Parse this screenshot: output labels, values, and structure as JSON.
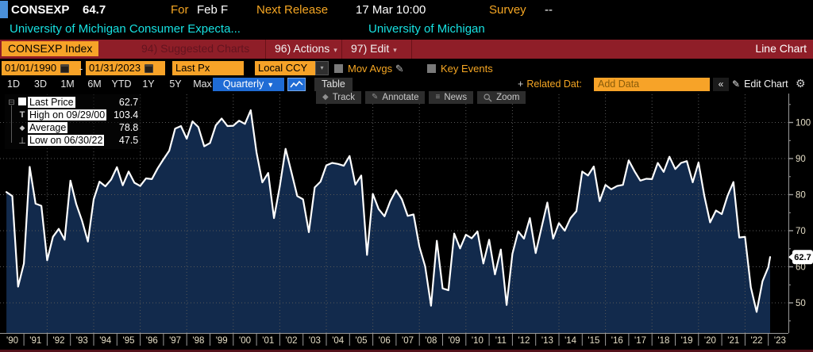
{
  "header": {
    "ticker": "CONSEXP",
    "last_value": "64.7",
    "for_label": "For",
    "for_value": "Feb F",
    "next_release_label": "Next Release",
    "next_release_value": "17 Mar 10:00",
    "survey_label": "Survey",
    "survey_value": "--",
    "description": "University of Michigan Consumer Expecta...",
    "source": "University of Michigan"
  },
  "menubar": {
    "security": "CONSEXP Index",
    "suggested_charts": "94) Suggested Charts",
    "actions": "96) Actions",
    "edit": "97) Edit",
    "view_name": "Line Chart"
  },
  "toolbar": {
    "date_from": "01/01/1990",
    "date_separator": "-",
    "date_to": "01/31/2023",
    "price_field": "Last Px",
    "currency": "Local CCY",
    "mov_avgs_label": "Mov Avgs",
    "key_events_label": "Key Events"
  },
  "period_bar": {
    "ranges": [
      "1D",
      "3D",
      "1M",
      "6M",
      "YTD",
      "1Y",
      "5Y",
      "Max"
    ],
    "frequency": "Quarterly",
    "table_label": "Table",
    "related_data_label": "Related Dat:",
    "add_data_placeholder": "Add Data",
    "collapse_label": "«",
    "edit_chart_label": "Edit Chart"
  },
  "chart_tools": [
    {
      "label": "Track",
      "icon": "track-icon"
    },
    {
      "label": "Annotate",
      "icon": "annotate-icon"
    },
    {
      "label": "News",
      "icon": "news-icon"
    },
    {
      "label": "Zoom",
      "icon": "zoom-icon"
    }
  ],
  "legend": {
    "items": [
      {
        "label": "Last Price",
        "value": "62.7",
        "marker": "square"
      },
      {
        "label": "High on 09/29/00",
        "value": "103.4",
        "marker": "high"
      },
      {
        "label": "Average",
        "value": "78.8",
        "marker": "average"
      },
      {
        "label": "Low on 06/30/22",
        "value": "47.5",
        "marker": "low"
      }
    ]
  },
  "chart_data": {
    "type": "area",
    "title": "CONSEXP Index - University of Michigan Consumer Expectations",
    "frequency": "Quarterly",
    "last_price": 62.7,
    "high": {
      "date": "09/29/00",
      "value": 103.4
    },
    "average": 78.8,
    "low": {
      "date": "06/30/22",
      "value": 47.5
    },
    "ylim": [
      41.5,
      109.0
    ],
    "xlim": [
      1990.0,
      2023.9
    ],
    "y_ticks": [
      50,
      60,
      70,
      80,
      90,
      100
    ],
    "y_minor_ticks": [
      45,
      55,
      65,
      75,
      85,
      95,
      105
    ],
    "grid_years": [
      1992,
      1994,
      1996,
      1998,
      2000,
      2002,
      2004,
      2006,
      2008,
      2010,
      2012,
      2014,
      2016,
      2018,
      2020,
      2022
    ],
    "x_tick_labels": [
      "'90",
      "'91",
      "'92",
      "'93",
      "'94",
      "'95",
      "'96",
      "'97",
      "'98",
      "'99",
      "'00",
      "'01",
      "'02",
      "'03",
      "'04",
      "'05",
      "'06",
      "'07",
      "'08",
      "'09",
      "'10",
      "'11",
      "'12",
      "'13",
      "'14",
      "'15",
      "'16",
      "'17",
      "'18",
      "'19",
      "'20",
      "'21",
      "'22",
      "'23"
    ],
    "line_color": "#ffffff",
    "fill_color": "#122a4c",
    "grid_color": "#585858",
    "axis_color": "#9a9a9a",
    "axis_label_color": "#e4ddc6",
    "points": [
      [
        1990.25,
        80.7
      ],
      [
        1990.5,
        79.6
      ],
      [
        1990.75,
        54.5
      ],
      [
        1991,
        60.9
      ],
      [
        1991.25,
        87.7
      ],
      [
        1991.5,
        77.5
      ],
      [
        1991.75,
        76.9
      ],
      [
        1992,
        61.8
      ],
      [
        1992.25,
        68.3
      ],
      [
        1992.5,
        70.5
      ],
      [
        1992.75,
        67.5
      ],
      [
        1993,
        83.9
      ],
      [
        1993.25,
        77.4
      ],
      [
        1993.5,
        72.8
      ],
      [
        1993.75,
        67
      ],
      [
        1994,
        78.7
      ],
      [
        1994.25,
        83.6
      ],
      [
        1994.5,
        82.3
      ],
      [
        1994.75,
        84.2
      ],
      [
        1995,
        87.6
      ],
      [
        1995.25,
        82.6
      ],
      [
        1995.5,
        86.4
      ],
      [
        1995.75,
        83.3
      ],
      [
        1996,
        82.4
      ],
      [
        1996.25,
        84.5
      ],
      [
        1996.5,
        84.3
      ],
      [
        1996.75,
        87.3
      ],
      [
        1997,
        89.8
      ],
      [
        1997.25,
        92.2
      ],
      [
        1997.5,
        98.3
      ],
      [
        1997.75,
        99
      ],
      [
        1998,
        95.5
      ],
      [
        1998.25,
        100.3
      ],
      [
        1998.5,
        98.7
      ],
      [
        1998.75,
        93.4
      ],
      [
        1999,
        94.3
      ],
      [
        1999.25,
        99.2
      ],
      [
        1999.5,
        101.1
      ],
      [
        1999.75,
        99
      ],
      [
        2000,
        99.1
      ],
      [
        2000.25,
        100.5
      ],
      [
        2000.5,
        99.6
      ],
      [
        2000.75,
        103.4
      ],
      [
        2001,
        91.7
      ],
      [
        2001.25,
        83.4
      ],
      [
        2001.5,
        86
      ],
      [
        2001.75,
        73.5
      ],
      [
        2002,
        82.3
      ],
      [
        2002.25,
        92.7
      ],
      [
        2002.5,
        86.2
      ],
      [
        2002.75,
        79.6
      ],
      [
        2003,
        78.7
      ],
      [
        2003.25,
        69.6
      ],
      [
        2003.5,
        82
      ],
      [
        2003.75,
        83.6
      ],
      [
        2004,
        88.1
      ],
      [
        2004.25,
        88.8
      ],
      [
        2004.5,
        88.5
      ],
      [
        2004.75,
        88
      ],
      [
        2005,
        90.7
      ],
      [
        2005.25,
        82.8
      ],
      [
        2005.5,
        85.3
      ],
      [
        2005.75,
        63.3
      ],
      [
        2006,
        80.2
      ],
      [
        2006.25,
        76
      ],
      [
        2006.5,
        74
      ],
      [
        2006.75,
        78.2
      ],
      [
        2007,
        81.2
      ],
      [
        2007.25,
        78.7
      ],
      [
        2007.5,
        74.1
      ],
      [
        2007.75,
        74.5
      ],
      [
        2008,
        65.6
      ],
      [
        2008.25,
        60.1
      ],
      [
        2008.5,
        49.2
      ],
      [
        2008.75,
        67.2
      ],
      [
        2009,
        54
      ],
      [
        2009.25,
        53.5
      ],
      [
        2009.5,
        69.2
      ],
      [
        2009.75,
        65.1
      ],
      [
        2010,
        68.9
      ],
      [
        2010.25,
        67.9
      ],
      [
        2010.5,
        69.8
      ],
      [
        2010.75,
        60.9
      ],
      [
        2011,
        67.5
      ],
      [
        2011.25,
        57.9
      ],
      [
        2011.5,
        64.8
      ],
      [
        2011.75,
        49.4
      ],
      [
        2012,
        63.6
      ],
      [
        2012.25,
        69.8
      ],
      [
        2012.5,
        67.8
      ],
      [
        2012.75,
        73.5
      ],
      [
        2013,
        63.8
      ],
      [
        2013.25,
        70.8
      ],
      [
        2013.5,
        77.8
      ],
      [
        2013.75,
        67.8
      ],
      [
        2014,
        72.1
      ],
      [
        2014.25,
        70
      ],
      [
        2014.5,
        73.5
      ],
      [
        2014.75,
        75.4
      ],
      [
        2015,
        86.4
      ],
      [
        2015.25,
        85.3
      ],
      [
        2015.5,
        87.8
      ],
      [
        2015.75,
        78.2
      ],
      [
        2016,
        82.7
      ],
      [
        2016.25,
        81.5
      ],
      [
        2016.5,
        82.4
      ],
      [
        2016.75,
        82.7
      ],
      [
        2017,
        89.5
      ],
      [
        2017.25,
        86.5
      ],
      [
        2017.5,
        83.9
      ],
      [
        2017.75,
        84.4
      ],
      [
        2018,
        84.3
      ],
      [
        2018.25,
        88.8
      ],
      [
        2018.5,
        86.3
      ],
      [
        2018.75,
        90.5
      ],
      [
        2019,
        87.1
      ],
      [
        2019.25,
        88.8
      ],
      [
        2019.5,
        89.3
      ],
      [
        2019.75,
        83.4
      ],
      [
        2020,
        88.9
      ],
      [
        2020.25,
        79.7
      ],
      [
        2020.5,
        72.3
      ],
      [
        2020.75,
        75.6
      ],
      [
        2021,
        74.6
      ],
      [
        2021.25,
        79.7
      ],
      [
        2021.5,
        83.5
      ],
      [
        2021.75,
        68.1
      ],
      [
        2022,
        68.3
      ],
      [
        2022.25,
        54.3
      ],
      [
        2022.5,
        47.5
      ],
      [
        2022.75,
        56
      ],
      [
        2023,
        59.9
      ],
      [
        2023.08,
        62.7
      ]
    ]
  },
  "colors": {
    "background": "#000000",
    "orange_chip": "#f7a328",
    "amber_text": "#f5a623",
    "cyan_text": "#17e0e0",
    "menu_red": "#8f1e28",
    "accent_blue": "#1f6cd5",
    "chart_fill": "#122a4c",
    "chart_line": "#ffffff"
  }
}
